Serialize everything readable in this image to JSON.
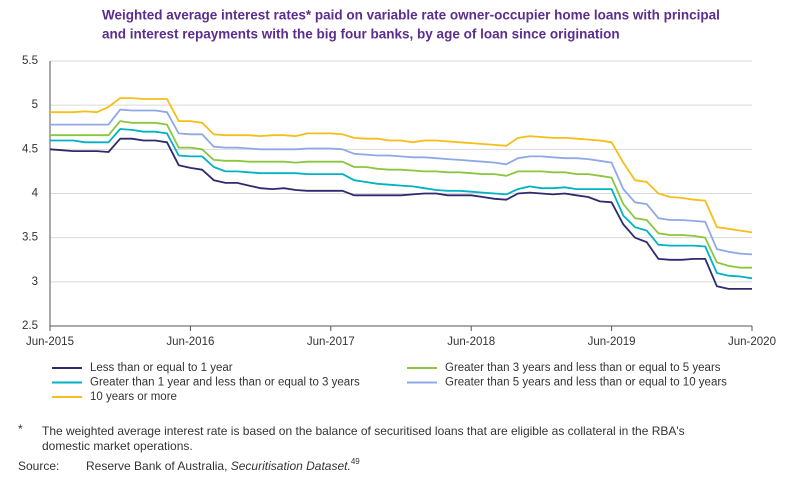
{
  "chart_data": {
    "type": "line",
    "title": [
      "Weighted average interest rates* paid on variable rate owner-occupier home loans with principal",
      "and interest repayments with the big four banks, by age of loan since origination"
    ],
    "categories": [
      "Jun-2015",
      null,
      null,
      null,
      null,
      null,
      null,
      null,
      null,
      null,
      null,
      null,
      "Jun-2016",
      null,
      null,
      null,
      null,
      null,
      null,
      null,
      null,
      null,
      null,
      null,
      "Jun-2017",
      null,
      null,
      null,
      null,
      null,
      null,
      null,
      null,
      null,
      null,
      null,
      "Jun-2018",
      null,
      null,
      null,
      null,
      null,
      null,
      null,
      null,
      null,
      null,
      null,
      "Jun-2019",
      null,
      null,
      null,
      null,
      null,
      null,
      null,
      null,
      null,
      null,
      null,
      "Jun-2020"
    ],
    "series": [
      {
        "name": "Less than or equal to 1 year",
        "color": "#2e2a6e",
        "values": [
          4.5,
          4.49,
          4.48,
          4.48,
          4.48,
          4.47,
          4.62,
          4.62,
          4.6,
          4.6,
          4.58,
          4.32,
          4.29,
          4.27,
          4.15,
          4.12,
          4.12,
          4.09,
          4.06,
          4.05,
          4.06,
          4.04,
          4.03,
          4.03,
          4.03,
          4.03,
          3.98,
          3.98,
          3.98,
          3.98,
          3.98,
          3.99,
          4.0,
          4.0,
          3.98,
          3.98,
          3.98,
          3.96,
          3.94,
          3.93,
          4.0,
          4.01,
          4.0,
          3.99,
          4.0,
          3.98,
          3.96,
          3.91,
          3.9,
          3.65,
          3.5,
          3.45,
          3.26,
          3.25,
          3.25,
          3.26,
          3.26,
          2.95,
          2.92,
          2.92,
          2.92
        ]
      },
      {
        "name": "Greater than 1 year and less than or equal to 3 years",
        "color": "#00b2c4",
        "values": [
          4.6,
          4.6,
          4.6,
          4.58,
          4.58,
          4.58,
          4.73,
          4.72,
          4.7,
          4.7,
          4.68,
          4.43,
          4.42,
          4.42,
          4.3,
          4.25,
          4.25,
          4.24,
          4.23,
          4.23,
          4.23,
          4.23,
          4.22,
          4.22,
          4.22,
          4.22,
          4.15,
          4.13,
          4.11,
          4.1,
          4.09,
          4.08,
          4.06,
          4.04,
          4.03,
          4.03,
          4.02,
          4.01,
          4.0,
          3.99,
          4.05,
          4.08,
          4.06,
          4.06,
          4.07,
          4.05,
          4.05,
          4.05,
          4.05,
          3.75,
          3.62,
          3.58,
          3.42,
          3.41,
          3.41,
          3.41,
          3.4,
          3.1,
          3.07,
          3.06,
          3.04
        ]
      },
      {
        "name": "10 years or more",
        "color": "#f5be1a",
        "values": [
          4.92,
          4.92,
          4.92,
          4.93,
          4.92,
          4.98,
          5.08,
          5.08,
          5.07,
          5.07,
          5.07,
          4.82,
          4.82,
          4.8,
          4.67,
          4.66,
          4.66,
          4.66,
          4.65,
          4.66,
          4.66,
          4.65,
          4.68,
          4.68,
          4.68,
          4.67,
          4.63,
          4.62,
          4.62,
          4.6,
          4.6,
          4.58,
          4.6,
          4.6,
          4.59,
          4.58,
          4.57,
          4.56,
          4.55,
          4.54,
          4.63,
          4.65,
          4.64,
          4.63,
          4.63,
          4.62,
          4.61,
          4.6,
          4.58,
          4.35,
          4.15,
          4.13,
          4.0,
          3.96,
          3.95,
          3.93,
          3.92,
          3.62,
          3.6,
          3.58,
          3.56
        ]
      },
      {
        "name": "Greater than 3 years and less than or equal to 5 years",
        "color": "#8cc63f",
        "values": [
          4.66,
          4.66,
          4.66,
          4.66,
          4.66,
          4.66,
          4.82,
          4.8,
          4.8,
          4.8,
          4.78,
          4.52,
          4.52,
          4.5,
          4.38,
          4.37,
          4.37,
          4.36,
          4.36,
          4.36,
          4.36,
          4.35,
          4.36,
          4.36,
          4.36,
          4.36,
          4.3,
          4.3,
          4.28,
          4.27,
          4.27,
          4.26,
          4.25,
          4.25,
          4.24,
          4.24,
          4.23,
          4.22,
          4.22,
          4.2,
          4.25,
          4.25,
          4.25,
          4.24,
          4.24,
          4.22,
          4.22,
          4.2,
          4.18,
          3.88,
          3.72,
          3.7,
          3.55,
          3.53,
          3.53,
          3.52,
          3.5,
          3.22,
          3.18,
          3.16,
          3.16
        ]
      },
      {
        "name": "Greater than 5 years and less than or equal to 10 years",
        "color": "#8fa8e8",
        "values": [
          4.78,
          4.78,
          4.78,
          4.78,
          4.78,
          4.78,
          4.95,
          4.94,
          4.94,
          4.94,
          4.92,
          4.68,
          4.67,
          4.67,
          4.53,
          4.52,
          4.52,
          4.51,
          4.5,
          4.5,
          4.5,
          4.5,
          4.51,
          4.51,
          4.51,
          4.5,
          4.45,
          4.44,
          4.43,
          4.43,
          4.42,
          4.41,
          4.41,
          4.4,
          4.39,
          4.38,
          4.37,
          4.36,
          4.35,
          4.33,
          4.4,
          4.42,
          4.42,
          4.41,
          4.4,
          4.4,
          4.39,
          4.37,
          4.35,
          4.05,
          3.9,
          3.88,
          3.72,
          3.7,
          3.7,
          3.69,
          3.68,
          3.37,
          3.34,
          3.32,
          3.31
        ]
      }
    ],
    "ylim": [
      2.5,
      5.5
    ],
    "yticks": [
      2.5,
      3,
      3.5,
      4,
      4.5,
      5,
      5.5
    ],
    "grid": true,
    "footnote_marker": "*",
    "footnote": [
      "The weighted average interest rate is based on the balance of securitised loans that are eligible as collateral in the RBA's",
      "domestic market operations."
    ],
    "source_label": "Source:",
    "source_text": "Reserve Bank of Australia, ",
    "source_title": "Securitisation Dataset.",
    "source_ref": "49"
  }
}
